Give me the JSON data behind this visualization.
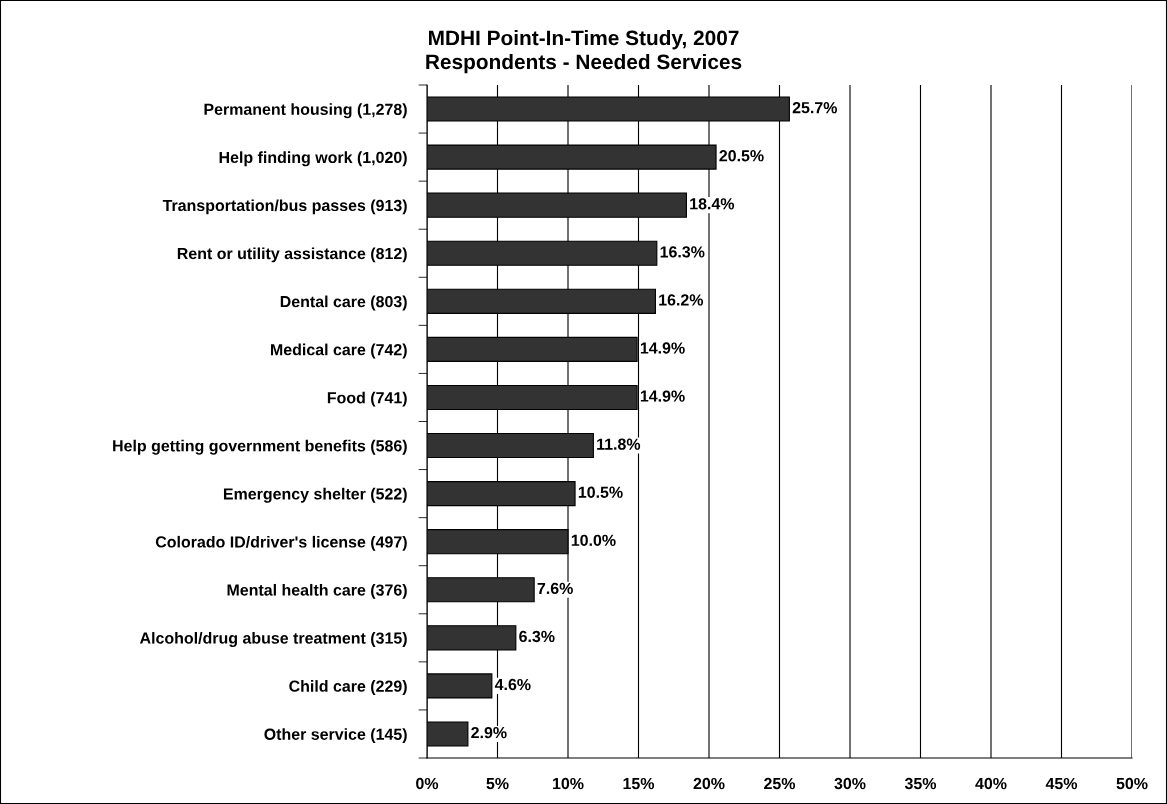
{
  "chart_data": {
    "type": "bar",
    "orientation": "horizontal",
    "title": "MDHI Point-In-Time Study, 2007\nRespondents - Needed Services",
    "categories": [
      "Permanent housing (1,278)",
      "Help finding work (1,020)",
      "Transportation/bus passes (913)",
      "Rent or utility assistance (812)",
      "Dental care (803)",
      "Medical care (742)",
      "Food (741)",
      "Help getting government benefits (586)",
      "Emergency shelter (522)",
      "Colorado ID/driver's license (497)",
      "Mental health care (376)",
      "Alcohol/drug abuse treatment (315)",
      "Child care (229)",
      "Other service (145)"
    ],
    "values": [
      25.7,
      20.5,
      18.4,
      16.3,
      16.2,
      14.9,
      14.9,
      11.8,
      10.5,
      10.0,
      7.6,
      6.3,
      4.6,
      2.9
    ],
    "value_labels": [
      "25.7%",
      "20.5%",
      "18.4%",
      "16.3%",
      "16.2%",
      "14.9%",
      "14.9%",
      "11.8%",
      "10.5%",
      "10.0%",
      "7.6%",
      "6.3%",
      "4.6%",
      "2.9%"
    ],
    "color": "#333333",
    "xlim": [
      0,
      50
    ],
    "xticks": [
      {
        "value": 0,
        "label": "0%"
      },
      {
        "value": 5,
        "label": "5%"
      },
      {
        "value": 10,
        "label": "10%"
      },
      {
        "value": 15,
        "label": "15%"
      },
      {
        "value": 20,
        "label": "20%"
      },
      {
        "value": 25,
        "label": "25%"
      },
      {
        "value": 30,
        "label": "30%"
      },
      {
        "value": 35,
        "label": "35%"
      },
      {
        "value": 40,
        "label": "40%"
      },
      {
        "value": 45,
        "label": "45%"
      },
      {
        "value": 50,
        "label": "50%"
      }
    ],
    "grid": "x",
    "legend": false
  }
}
